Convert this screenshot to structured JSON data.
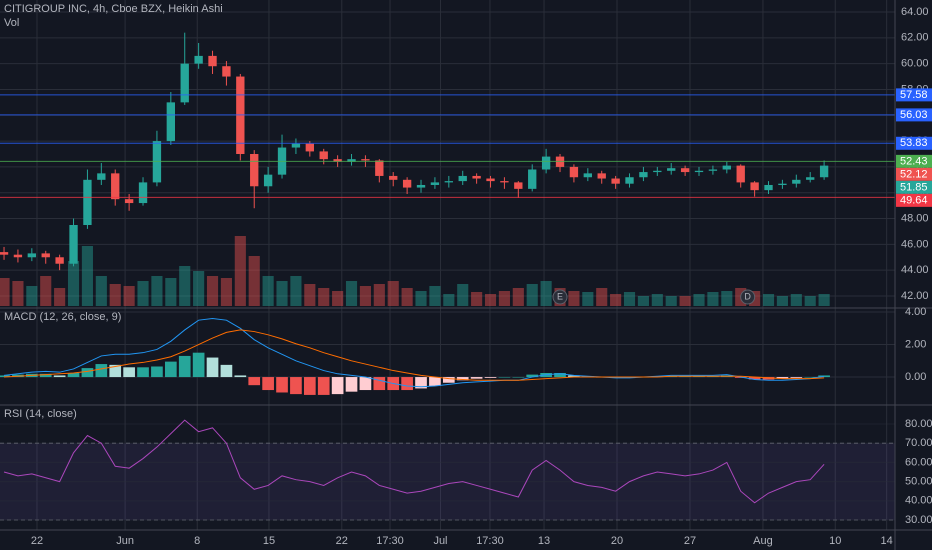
{
  "chart_data": [
    {
      "type": "candlestick",
      "title": "CITIGROUP INC, 4h, Cboe BZX, Heikin Ashi",
      "subtitle": "Vol",
      "up_color": "#26a69a",
      "down_color": "#ef5350",
      "xlim": [
        -0.29,
        64.1
      ],
      "xticks": [
        {
          "value": 2.37,
          "label": "22"
        },
        {
          "value": 8.71,
          "label": "Jun"
        },
        {
          "value": 13.9,
          "label": "8"
        },
        {
          "value": 19.06,
          "label": "15"
        },
        {
          "value": 24.3,
          "label": "22"
        },
        {
          "value": 27.77,
          "label": "17:30"
        },
        {
          "value": 31.4,
          "label": "Jul"
        },
        {
          "value": 34.96,
          "label": "17:30"
        },
        {
          "value": 38.85,
          "label": "13"
        },
        {
          "value": 44.1,
          "label": "20"
        },
        {
          "value": 49.35,
          "label": "27"
        },
        {
          "value": 54.6,
          "label": "Aug"
        },
        {
          "value": 59.8,
          "label": "10"
        },
        {
          "value": 63.5,
          "label": "14"
        }
      ],
      "ylim": [
        41.07,
        64.93
      ],
      "yticks": [
        {
          "value": 42,
          "label": "42.00"
        },
        {
          "value": 44,
          "label": "44.00"
        },
        {
          "value": 46,
          "label": "46.00"
        },
        {
          "value": 48,
          "label": "48.00"
        },
        {
          "value": 50,
          "label": "50.00"
        },
        {
          "value": 52,
          "label": "52.00"
        },
        {
          "value": 54,
          "label": "54.00"
        },
        {
          "value": 56,
          "label": "56.00"
        },
        {
          "value": 58,
          "label": "58.00"
        },
        {
          "value": 60,
          "label": "60.00"
        },
        {
          "value": 62,
          "label": "62.00"
        },
        {
          "value": 64,
          "label": "64.00"
        }
      ],
      "grid": true,
      "open": [
        45.4,
        45.2,
        45.0,
        45.3,
        45.0,
        44.5,
        47.5,
        51.0,
        51.5,
        49.5,
        49.2,
        50.8,
        54.0,
        57.0,
        60.0,
        60.6,
        59.8,
        59.0,
        53.0,
        50.5,
        51.4,
        53.5,
        53.8,
        53.2,
        52.6,
        52.4,
        52.6,
        52.5,
        51.3,
        51.0,
        50.4,
        50.6,
        50.8,
        50.9,
        51.3,
        51.1,
        50.9,
        50.8,
        50.3,
        51.8,
        52.8,
        52.0,
        51.2,
        51.5,
        51.1,
        50.7,
        51.2,
        51.6,
        51.7,
        51.9,
        51.6,
        51.7,
        51.8,
        52.1,
        50.8,
        50.2,
        50.6,
        50.7,
        51.0,
        51.2
      ],
      "high": [
        45.8,
        45.6,
        45.7,
        45.5,
        45.2,
        48.0,
        51.8,
        52.3,
        51.8,
        49.9,
        51.2,
        54.8,
        57.8,
        62.4,
        61.6,
        61.0,
        60.2,
        59.2,
        53.3,
        52.0,
        54.5,
        54.2,
        54.0,
        53.4,
        52.9,
        53.0,
        52.9,
        52.6,
        51.6,
        51.2,
        51.0,
        51.2,
        51.3,
        51.7,
        51.5,
        51.3,
        51.2,
        50.9,
        52.2,
        53.4,
        53.0,
        52.2,
        51.9,
        51.7,
        51.3,
        51.5,
        52.0,
        52.0,
        52.3,
        52.1,
        52.0,
        52.1,
        52.4,
        52.2,
        50.9,
        50.9,
        51.0,
        51.4,
        51.6,
        52.5
      ],
      "low": [
        44.8,
        44.6,
        44.7,
        44.5,
        44.0,
        44.3,
        47.2,
        50.6,
        49.0,
        48.6,
        49.0,
        50.5,
        53.7,
        56.8,
        59.6,
        59.2,
        58.3,
        52.5,
        48.8,
        50.0,
        51.1,
        53.0,
        52.8,
        52.2,
        52.0,
        52.1,
        52.0,
        50.8,
        50.5,
        49.9,
        50.0,
        50.3,
        50.4,
        50.6,
        50.7,
        50.4,
        50.3,
        49.6,
        50.1,
        51.5,
        51.6,
        50.8,
        50.9,
        50.7,
        50.3,
        50.4,
        50.9,
        51.3,
        51.4,
        51.3,
        51.3,
        51.4,
        51.5,
        50.4,
        49.7,
        49.9,
        50.3,
        50.4,
        50.8,
        51.0
      ],
      "close": [
        45.2,
        45.0,
        45.3,
        45.0,
        44.5,
        47.5,
        51.0,
        51.5,
        49.5,
        49.2,
        50.8,
        54.0,
        57.0,
        60.0,
        60.6,
        59.8,
        59.0,
        53.0,
        50.5,
        51.4,
        53.5,
        53.8,
        53.2,
        52.6,
        52.4,
        52.6,
        52.5,
        51.3,
        51.0,
        50.4,
        50.6,
        50.8,
        50.9,
        51.3,
        51.1,
        50.9,
        50.8,
        50.3,
        51.8,
        52.8,
        52.0,
        51.2,
        51.5,
        51.1,
        50.7,
        51.2,
        51.6,
        51.7,
        51.9,
        51.6,
        51.7,
        51.8,
        52.1,
        50.8,
        50.2,
        50.6,
        50.7,
        51.0,
        51.2,
        52.1
      ],
      "volume": [
        2.8,
        2.5,
        2.0,
        3.0,
        1.8,
        4.5,
        6.0,
        3.0,
        2.2,
        2.0,
        2.5,
        3.0,
        2.8,
        4.0,
        3.5,
        3.0,
        2.8,
        7.0,
        5.0,
        3.0,
        2.5,
        3.0,
        2.2,
        1.8,
        1.5,
        2.5,
        2.0,
        2.2,
        2.5,
        1.8,
        1.5,
        2.0,
        1.2,
        2.2,
        1.4,
        1.2,
        1.5,
        1.8,
        2.2,
        2.5,
        1.8,
        1.5,
        1.4,
        1.8,
        1.2,
        1.4,
        1.0,
        1.2,
        1.0,
        1.0,
        1.2,
        1.4,
        1.5,
        1.8,
        1.5,
        1.2,
        1.0,
        1.2,
        1.0,
        1.2
      ],
      "levels": [
        {
          "value": 57.58,
          "color": "#2962ff"
        },
        {
          "value": 56.03,
          "color": "#2962ff"
        },
        {
          "value": 53.83,
          "color": "#2962ff"
        },
        {
          "value": 52.43,
          "color": "#4caf50"
        },
        {
          "value": 49.64,
          "color": "#f23645"
        }
      ],
      "price_labels": [
        {
          "value": 52.12,
          "color": "#ef5350"
        },
        {
          "value": 51.85,
          "color": "#26a69a"
        }
      ],
      "events": [
        {
          "x": 40,
          "label": "E"
        },
        {
          "x": 53.5,
          "label": "D"
        }
      ]
    },
    {
      "type": "macd",
      "title": "MACD (12, 26, close, 9)",
      "ylim": [
        -1.72,
        4.25
      ],
      "yticks": [
        {
          "value": 0,
          "label": "0.00"
        },
        {
          "value": 2,
          "label": "2.00"
        },
        {
          "value": 4,
          "label": "4.00"
        }
      ],
      "histogram": [
        0.1,
        0.15,
        0.2,
        0.2,
        0.1,
        0.25,
        0.55,
        0.8,
        0.75,
        0.6,
        0.6,
        0.65,
        0.95,
        1.3,
        1.5,
        1.2,
        0.75,
        0.1,
        -0.5,
        -0.8,
        -0.95,
        -1.05,
        -1.1,
        -1.1,
        -1.05,
        -0.9,
        -0.8,
        -0.8,
        -0.8,
        -0.8,
        -0.7,
        -0.55,
        -0.35,
        -0.2,
        -0.1,
        -0.05,
        0.0,
        0.0,
        0.15,
        0.25,
        0.25,
        0.1,
        0.05,
        0.0,
        -0.05,
        -0.05,
        0.0,
        0.05,
        0.05,
        0.05,
        0.05,
        0.05,
        0.1,
        -0.05,
        -0.15,
        -0.15,
        -0.1,
        -0.05,
        0.0,
        0.1
      ],
      "lines": [
        {
          "color": "#2196f3",
          "values": [
            0.1,
            0.2,
            0.3,
            0.35,
            0.3,
            0.5,
            0.9,
            1.3,
            1.4,
            1.4,
            1.5,
            1.7,
            2.2,
            2.9,
            3.5,
            3.6,
            3.5,
            3.0,
            2.3,
            1.8,
            1.4,
            1.0,
            0.7,
            0.4,
            0.2,
            0.1,
            0.0,
            -0.2,
            -0.4,
            -0.55,
            -0.6,
            -0.55,
            -0.45,
            -0.35,
            -0.3,
            -0.25,
            -0.2,
            -0.2,
            0.0,
            0.15,
            0.2,
            0.1,
            0.05,
            0.0,
            -0.05,
            -0.05,
            0.0,
            0.05,
            0.1,
            0.1,
            0.1,
            0.1,
            0.15,
            0.0,
            -0.15,
            -0.2,
            -0.2,
            -0.15,
            -0.1,
            0.05
          ]
        },
        {
          "color": "#ff6d00",
          "values": [
            0.0,
            0.05,
            0.1,
            0.15,
            0.2,
            0.25,
            0.35,
            0.5,
            0.65,
            0.8,
            0.9,
            1.05,
            1.25,
            1.6,
            2.0,
            2.4,
            2.75,
            2.9,
            2.8,
            2.6,
            2.35,
            2.05,
            1.8,
            1.5,
            1.25,
            1.0,
            0.8,
            0.6,
            0.4,
            0.25,
            0.1,
            0.0,
            -0.1,
            -0.15,
            -0.2,
            -0.2,
            -0.2,
            -0.2,
            -0.15,
            -0.1,
            -0.05,
            0.0,
            0.0,
            0.0,
            0.0,
            0.0,
            0.0,
            0.0,
            0.05,
            0.05,
            0.05,
            0.05,
            0.05,
            0.05,
            0.0,
            -0.05,
            -0.1,
            -0.1,
            -0.1,
            -0.05
          ]
        }
      ]
    },
    {
      "type": "rsi",
      "title": "RSI (14, close)",
      "color": "#ab47bc",
      "ylim": [
        24.8,
        89.9
      ],
      "band": [
        30,
        70
      ],
      "yticks": [
        {
          "value": 30,
          "label": "30.00"
        },
        {
          "value": 40,
          "label": "40.00"
        },
        {
          "value": 50,
          "label": "50.00"
        },
        {
          "value": 60,
          "label": "60.00"
        },
        {
          "value": 70,
          "label": "70.00"
        },
        {
          "value": 80,
          "label": "80.00"
        }
      ],
      "values": [
        55,
        53,
        54,
        52,
        50,
        65,
        74,
        70,
        58,
        57,
        62,
        68,
        75,
        82,
        76,
        78,
        70,
        52,
        46,
        48,
        53,
        51,
        50,
        48,
        52,
        55,
        53,
        48,
        46,
        44,
        45,
        47,
        49,
        50,
        48,
        46,
        44,
        42,
        56,
        61,
        56,
        50,
        48,
        47,
        45,
        50,
        53,
        55,
        54,
        53,
        54,
        56,
        60,
        45,
        39,
        44,
        47,
        50,
        51,
        59
      ]
    }
  ]
}
